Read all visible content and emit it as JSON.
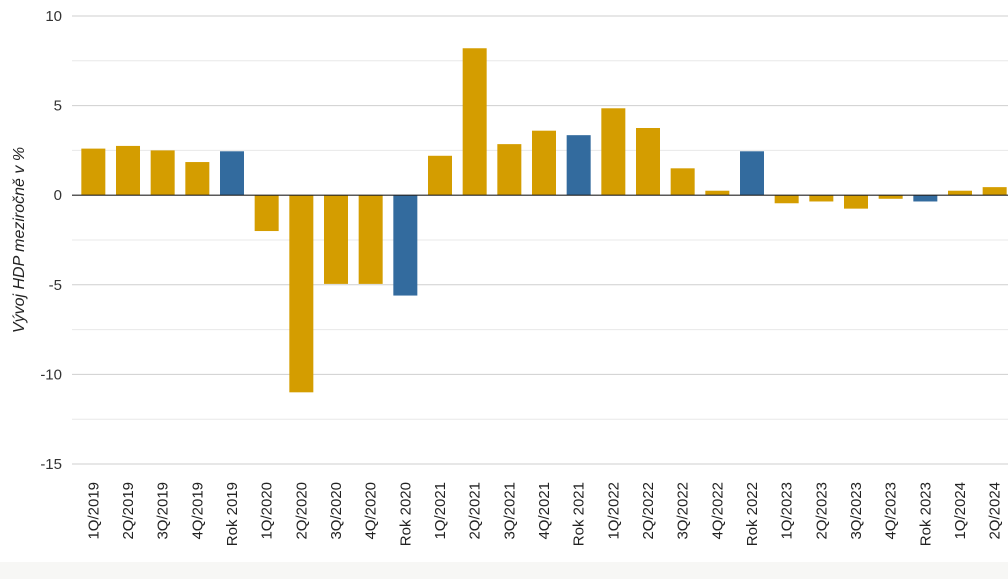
{
  "chart_data": {
    "type": "bar",
    "ylabel": "Vývoj HDP meziročně v %",
    "ylim": [
      -15,
      10
    ],
    "yticks": [
      10,
      5,
      0,
      -5,
      -10,
      -15
    ],
    "grid": true,
    "colors": {
      "quarter": "#d49d00",
      "year": "#336b9e"
    },
    "categories": [
      "1Q/2019",
      "2Q/2019",
      "3Q/2019",
      "4Q/2019",
      "Rok 2019",
      "1Q/2020",
      "2Q/2020",
      "3Q/2020",
      "4Q/2020",
      "Rok 2020",
      "1Q/2021",
      "2Q/2021",
      "3Q/2021",
      "4Q/2021",
      "Rok 2021",
      "1Q/2022",
      "2Q/2022",
      "3Q/2022",
      "4Q/2022",
      "Rok 2022",
      "1Q/2023",
      "2Q/2023",
      "3Q/2023",
      "4Q/2023",
      "Rok 2023",
      "1Q/2024",
      "2Q/2024"
    ],
    "values": [
      2.6,
      2.75,
      2.5,
      1.85,
      2.45,
      -2.0,
      -11.0,
      -4.95,
      -4.95,
      -5.6,
      2.2,
      8.2,
      2.85,
      3.6,
      3.35,
      4.85,
      3.75,
      1.5,
      0.25,
      2.45,
      -0.45,
      -0.35,
      -0.75,
      -0.2,
      -0.35,
      0.25,
      0.45
    ],
    "kinds": [
      "quarter",
      "quarter",
      "quarter",
      "quarter",
      "year",
      "quarter",
      "quarter",
      "quarter",
      "quarter",
      "year",
      "quarter",
      "quarter",
      "quarter",
      "quarter",
      "year",
      "quarter",
      "quarter",
      "quarter",
      "quarter",
      "year",
      "quarter",
      "quarter",
      "quarter",
      "quarter",
      "year",
      "quarter",
      "quarter"
    ]
  }
}
